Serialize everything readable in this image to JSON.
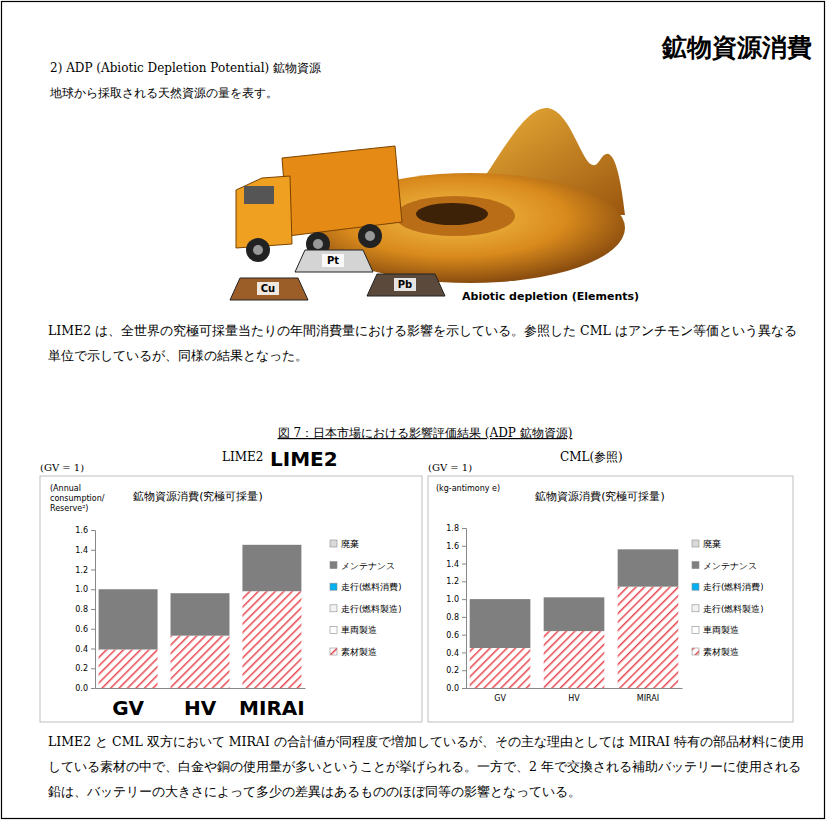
{
  "document": {
    "heading": "鉱物資源消費",
    "section_title": "2) ADP (Abiotic Depletion Potential) 鉱物資源",
    "intro": "地球から採取される天然資源の量を表す。",
    "illustration": {
      "labels": [
        "Pt",
        "Cu",
        "Pb"
      ],
      "caption": "Abiotic depletion (Elements)"
    },
    "paragraph_1": "LIME2 は、全世界の究極可採量当たりの年間消費量における影響を示している。参照した CML はアンチモン等価という異なる単位で示しているが、同様の結果となった。",
    "figure_caption": "図 7：日本市場における影響評価結果 (ADP 鉱物資源)",
    "paragraph_2": "LIME2 と CML 双方において MIRAI の合計値が同程度で増加しているが、その主な理由としては MIRAI 特有の部品材料に使用している素材の中で、白金や銅の使用量が多いということが挙げられる。一方で、2 年で交換される補助バッテリーに使用される鉛は、バッテリーの大きさによって多少の差異はあるもののほぼ同等の影響となっている。"
  },
  "chart_data": [
    {
      "type": "bar",
      "stacked": true,
      "grid": false,
      "legend": "right",
      "subtitle": "LIME2",
      "annotations": [
        "(GV = 1)",
        "LIME2"
      ],
      "title": "鉱物資源消費(究極可採量)",
      "ylabel": "(Annual consumption/ Reserve²)",
      "categories": [
        "GV",
        "HV",
        "MIRAI"
      ],
      "ylim": [
        0,
        1.6
      ],
      "yticks": [
        {
          "value": 0,
          "label": "0.0"
        },
        0.2,
        0.4,
        0.6,
        0.8,
        {
          "value": 1,
          "label": "1.0"
        },
        1.2,
        1.4,
        1.6
      ],
      "series": [
        {
          "name": "廃棄",
          "color": "#d9d9d9",
          "values": [
            0,
            0,
            0
          ]
        },
        {
          "name": "メンテナンス",
          "color": "#7f7f7f",
          "values": [
            0.61,
            0.43,
            0.47
          ]
        },
        {
          "name": "走行(燃料消費)",
          "color": "#00b0f0",
          "values": [
            0,
            0,
            0
          ]
        },
        {
          "name": "走行(燃料製造)",
          "color": "#f2f2f2",
          "values": [
            0,
            0,
            0
          ]
        },
        {
          "name": "車両製造",
          "color": "#ffffff",
          "values": [
            0,
            0,
            0
          ]
        },
        {
          "name": "素材製造",
          "color": "#e8474f",
          "values": [
            0.39,
            0.53,
            0.98
          ]
        }
      ]
    },
    {
      "type": "bar",
      "stacked": true,
      "grid": false,
      "legend": "right",
      "subtitle": "CML(参照)",
      "annotations": [
        "(GV = 1)"
      ],
      "title": "鉱物資源消費(究極可採量)",
      "ylabel": "(kg-antimony e)",
      "categories": [
        "GV",
        "HV",
        "MIRAI"
      ],
      "ylim": [
        0,
        1.8
      ],
      "yticks": [
        {
          "value": 0,
          "label": "0.0"
        },
        0.2,
        0.4,
        0.6,
        0.8,
        {
          "value": 1,
          "label": "1.0"
        },
        1.2,
        1.4,
        1.6,
        1.8
      ],
      "series": [
        {
          "name": "廃棄",
          "color": "#d9d9d9",
          "values": [
            0,
            0,
            0
          ]
        },
        {
          "name": "メンテナンス",
          "color": "#7f7f7f",
          "values": [
            0.55,
            0.38,
            0.42
          ]
        },
        {
          "name": "走行(燃料消費)",
          "color": "#00b0f0",
          "values": [
            0,
            0,
            0
          ]
        },
        {
          "name": "走行(燃料製造)",
          "color": "#f2f2f2",
          "values": [
            0,
            0,
            0
          ]
        },
        {
          "name": "車両製造",
          "color": "#ffffff",
          "values": [
            0,
            0,
            0
          ]
        },
        {
          "name": "素材製造",
          "color": "#e8474f",
          "values": [
            0.45,
            0.64,
            1.14
          ]
        }
      ]
    }
  ]
}
